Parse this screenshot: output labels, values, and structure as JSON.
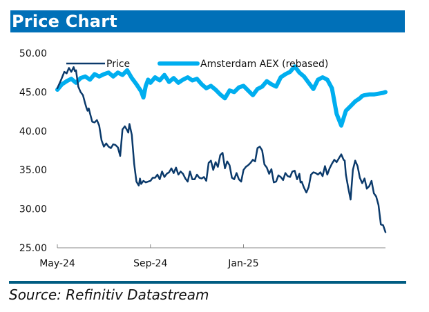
{
  "header": {
    "title": "Price Chart"
  },
  "footer": {
    "source": "Source: Refinitiv Datastream"
  },
  "colors": {
    "title_bar": "#0070b8",
    "price": "#0b3a6b",
    "index": "#00aeef",
    "axis": "#888888",
    "footer_rule": "#005c82"
  },
  "chart_data": {
    "type": "line",
    "title": "Price Chart",
    "xlabel": "",
    "ylabel": "",
    "ylim": [
      25,
      50
    ],
    "yticks": [
      "50.00",
      "45.00",
      "40.00",
      "35.00",
      "30.00",
      "25.00"
    ],
    "ytick_values": [
      50,
      45,
      40,
      35,
      30,
      25
    ],
    "xticks": [
      "May-24",
      "Sep-24",
      "Jan-25"
    ],
    "xtick_positions_months": [
      0,
      4,
      8
    ],
    "xlim_months": [
      0,
      14.1
    ],
    "grid": false,
    "legend": {
      "placement": "top",
      "entries": [
        "Price",
        "Amsterdam AEX (rebased)"
      ]
    },
    "series": [
      {
        "name": "Price",
        "x_months": [
          0,
          0.15,
          0.3,
          0.4,
          0.5,
          0.6,
          0.7,
          0.75,
          0.8,
          0.85,
          0.9,
          1.0,
          1.1,
          1.2,
          1.25,
          1.3,
          1.35,
          1.4,
          1.5,
          1.6,
          1.7,
          1.8,
          1.9,
          2.0,
          2.1,
          2.2,
          2.3,
          2.4,
          2.5,
          2.6,
          2.7,
          2.8,
          2.9,
          3.0,
          3.05,
          3.1,
          3.2,
          3.3,
          3.35,
          3.4,
          3.5,
          3.55,
          3.6,
          3.7,
          3.8,
          3.9,
          4.0,
          4.1,
          4.2,
          4.3,
          4.4,
          4.5,
          4.6,
          4.7,
          4.8,
          4.9,
          5.0,
          5.1,
          5.2,
          5.3,
          5.4,
          5.5,
          5.6,
          5.7,
          5.8,
          5.9,
          6.0,
          6.1,
          6.2,
          6.3,
          6.4,
          6.5,
          6.6,
          6.7,
          6.8,
          6.9,
          7.0,
          7.1,
          7.2,
          7.3,
          7.4,
          7.5,
          7.6,
          7.7,
          7.8,
          7.9,
          8.0,
          8.1,
          8.2,
          8.3,
          8.4,
          8.5,
          8.6,
          8.7,
          8.8,
          8.9,
          9.0,
          9.1,
          9.2,
          9.3,
          9.4,
          9.5,
          9.6,
          9.7,
          9.8,
          9.9,
          10.0,
          10.1,
          10.2,
          10.3,
          10.4,
          10.45,
          10.5,
          10.6,
          10.7,
          10.8,
          10.9,
          11.0,
          11.1,
          11.2,
          11.3,
          11.4,
          11.5,
          11.6,
          11.7,
          11.8,
          11.9,
          12.0,
          12.1,
          12.2,
          12.3,
          12.35,
          12.4,
          12.5,
          12.6,
          12.7,
          12.8,
          12.9,
          13.0,
          13.1,
          13.2,
          13.3,
          13.4,
          13.5,
          13.6,
          13.7,
          13.8,
          13.9,
          14.0,
          14.1
        ],
        "values": [
          45.5,
          46.5,
          47.6,
          47.4,
          48.1,
          47.6,
          48.2,
          47.7,
          47.8,
          46.8,
          45.7,
          45.0,
          44.6,
          43.5,
          43.0,
          42.6,
          42.9,
          42.3,
          41.2,
          41.1,
          41.4,
          40.7,
          38.8,
          38.0,
          38.4,
          38.0,
          37.8,
          38.3,
          38.2,
          37.9,
          36.8,
          40.2,
          40.6,
          40.1,
          39.8,
          40.9,
          39.5,
          35.8,
          34.6,
          33.5,
          33.0,
          33.9,
          33.2,
          33.6,
          33.4,
          33.5,
          33.6,
          34.0,
          34.0,
          34.4,
          33.8,
          34.8,
          34.1,
          34.5,
          34.7,
          35.2,
          34.6,
          35.3,
          34.4,
          34.8,
          34.5,
          33.9,
          33.5,
          34.8,
          33.8,
          33.8,
          34.4,
          34.0,
          33.9,
          34.1,
          33.6,
          35.9,
          36.2,
          35.0,
          36.0,
          35.4,
          36.9,
          37.2,
          35.2,
          36.1,
          35.6,
          34.0,
          33.8,
          34.6,
          33.8,
          33.5,
          35.0,
          35.4,
          35.6,
          35.9,
          36.3,
          36.1,
          37.8,
          38.0,
          37.5,
          35.7,
          35.3,
          34.5,
          35.1,
          33.4,
          33.5,
          34.3,
          34.1,
          33.7,
          34.6,
          34.2,
          34.1,
          34.8,
          34.9,
          33.8,
          34.5,
          33.4,
          33.5,
          32.7,
          32.1,
          32.8,
          34.4,
          34.7,
          34.6,
          34.4,
          34.7,
          34.2,
          35.5,
          34.4,
          35.2,
          35.8,
          36.3,
          36.0,
          36.5,
          37.0,
          36.3,
          36.2,
          34.4,
          32.7,
          31.2,
          35.0,
          36.2,
          35.5,
          34.0,
          33.3,
          33.9,
          32.6,
          32.9,
          33.6,
          32.0,
          31.6,
          30.5,
          28.0,
          27.9,
          27.0
        ]
      },
      {
        "name": "Amsterdam AEX (rebased)",
        "x_months": [
          0,
          0.2,
          0.4,
          0.6,
          0.8,
          1.0,
          1.2,
          1.4,
          1.6,
          1.8,
          2.0,
          2.2,
          2.4,
          2.6,
          2.8,
          3.0,
          3.2,
          3.4,
          3.6,
          3.7,
          3.8,
          3.9,
          4.0,
          4.2,
          4.4,
          4.6,
          4.8,
          5.0,
          5.2,
          5.4,
          5.6,
          5.8,
          6.0,
          6.2,
          6.4,
          6.6,
          6.8,
          7.0,
          7.2,
          7.4,
          7.6,
          7.8,
          8.0,
          8.2,
          8.4,
          8.6,
          8.8,
          9.0,
          9.2,
          9.4,
          9.6,
          9.8,
          10.0,
          10.2,
          10.4,
          10.6,
          10.8,
          11.0,
          11.2,
          11.4,
          11.6,
          11.8,
          12.0,
          12.2,
          12.4,
          12.6,
          12.8,
          13.0,
          13.1,
          13.2,
          13.4,
          13.6,
          13.8,
          14.0,
          14.1
        ],
        "values": [
          45.3,
          46.0,
          46.4,
          46.7,
          46.2,
          46.8,
          47.0,
          46.6,
          47.3,
          47.0,
          47.3,
          47.5,
          47.0,
          47.5,
          47.2,
          47.8,
          46.8,
          46.0,
          45.1,
          44.3,
          45.8,
          46.6,
          46.2,
          46.9,
          46.5,
          47.2,
          46.3,
          46.8,
          46.2,
          46.6,
          46.9,
          46.5,
          46.7,
          46.0,
          45.5,
          45.8,
          45.3,
          44.7,
          44.2,
          45.2,
          45.0,
          45.6,
          45.8,
          45.2,
          44.6,
          45.4,
          45.7,
          46.4,
          46.0,
          45.7,
          46.9,
          47.3,
          47.6,
          48.3,
          47.5,
          47.0,
          46.2,
          45.4,
          46.6,
          46.9,
          46.6,
          45.5,
          42.2,
          40.7,
          42.6,
          43.2,
          43.8,
          44.2,
          44.5,
          44.6,
          44.7,
          44.7,
          44.8,
          44.9,
          45.0
        ]
      }
    ]
  }
}
